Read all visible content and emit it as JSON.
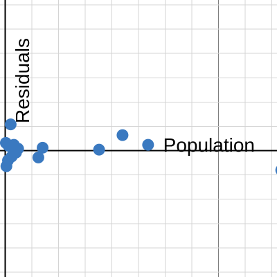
{
  "chart_data": {
    "type": "scatter",
    "xlabel": "Population",
    "ylabel": "Residuals",
    "x_grid_minor_step": 25,
    "x_grid_major_step": 200,
    "y_grid_step": 25,
    "xlim": [
      -5,
      255
    ],
    "ylim": [
      -130,
      155
    ],
    "grid": true,
    "point_color": "#3a79c0",
    "series": [
      {
        "points": [
          {
            "x": 0.5,
            "y": 8
          },
          {
            "x": 1,
            "y": -16
          },
          {
            "x": 2.5,
            "y": -10
          },
          {
            "x": 3,
            "y": 5
          },
          {
            "x": 5,
            "y": 27
          },
          {
            "x": 6,
            "y": -6
          },
          {
            "x": 8,
            "y": 6
          },
          {
            "x": 10,
            "y": -2
          },
          {
            "x": 12,
            "y": 2
          },
          {
            "x": 31,
            "y": -7
          },
          {
            "x": 35,
            "y": 3
          },
          {
            "x": 88,
            "y": 1
          },
          {
            "x": 110,
            "y": 16
          },
          {
            "x": 134,
            "y": 6
          },
          {
            "x": 259,
            "y": -20
          }
        ]
      }
    ]
  }
}
